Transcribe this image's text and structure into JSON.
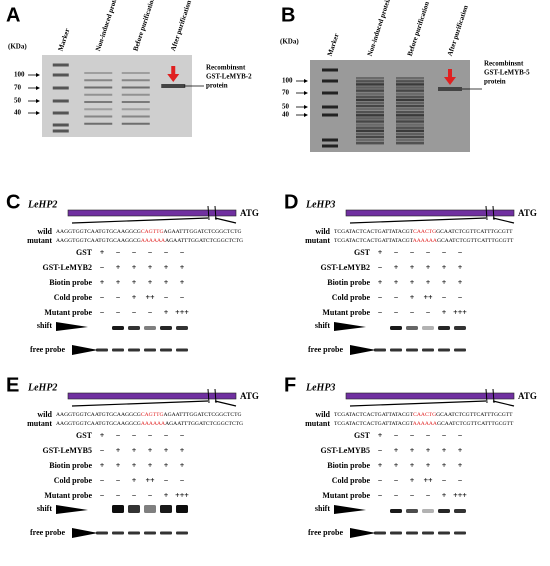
{
  "gels": [
    {
      "letter": "A",
      "unit": "(KDa)",
      "lanes": [
        "Marker",
        "Non-induced protein",
        "Before purification",
        "After purification"
      ],
      "markers": [
        100,
        70,
        50,
        40
      ],
      "label": [
        "Recombinsnt",
        "GST-LeMYB-2",
        "protein"
      ]
    },
    {
      "letter": "B",
      "unit": "(KDa)",
      "lanes": [
        "Marker",
        "Non-induced protein",
        "Before purification",
        "After purification"
      ],
      "markers": [
        100,
        70,
        50,
        40
      ],
      "label": [
        "Recombinsnt",
        "GST-LeMYB-5",
        "protein"
      ]
    }
  ],
  "emsa": [
    {
      "letter": "C",
      "gene": "LeHP2",
      "start": "ATG",
      "wild": {
        "name": "wild",
        "pre": "AAGGTGGTCAATGTGCAAGGCG",
        "site": "CAGTTG",
        "post": "AGAATTTGGATCTCGGCTCTG"
      },
      "mutant": {
        "name": "mutant",
        "pre": "AAGGTGGTCAATGTGCAAGGCG",
        "site": "AAAAAA",
        "post": "AGAATTTGGATCTCGGCTCTG"
      },
      "rows": [
        {
          "name": "GST",
          "signs": [
            "+",
            "−",
            "−",
            "−",
            "−",
            "−"
          ]
        },
        {
          "name": "GST-LeMYB2",
          "signs": [
            "−",
            "+",
            "+",
            "+",
            "+",
            "+"
          ]
        },
        {
          "name": "Biotin probe",
          "signs": [
            "+",
            "+",
            "+",
            "+",
            "+",
            "+"
          ]
        },
        {
          "name": "Cold probe",
          "signs": [
            "−",
            "−",
            "+",
            "++",
            "−",
            "−"
          ]
        },
        {
          "name": "Mutant probe",
          "signs": [
            "−",
            "−",
            "−",
            "−",
            "+",
            "+++"
          ]
        }
      ],
      "shift": "shift",
      "free": "free probe"
    },
    {
      "letter": "D",
      "gene": "LeHP3",
      "start": "ATG",
      "wild": {
        "name": "wild",
        "pre": "TCGATACTCACTGATTATACGT",
        "site": "CAACTG",
        "post": "GCAATCTCGTTCATTTGCGTT"
      },
      "mutant": {
        "name": "mutant",
        "pre": "TCGATACTCACTGATTATACGT",
        "site": "AAAAAA",
        "post": "GCAATCTCGTTCATTTGCGTT"
      },
      "rows": [
        {
          "name": "GST",
          "signs": [
            "+",
            "−",
            "−",
            "−",
            "−",
            "−"
          ]
        },
        {
          "name": "GST-LeMYB2",
          "signs": [
            "−",
            "+",
            "+",
            "+",
            "+",
            "+"
          ]
        },
        {
          "name": "Biotin probe",
          "signs": [
            "+",
            "+",
            "+",
            "+",
            "+",
            "+"
          ]
        },
        {
          "name": "Cold probe",
          "signs": [
            "−",
            "−",
            "+",
            "++",
            "−",
            "−"
          ]
        },
        {
          "name": "Mutant probe",
          "signs": [
            "−",
            "−",
            "−",
            "−",
            "+",
            "+++"
          ]
        }
      ],
      "shift": "shift",
      "free": "free probe"
    },
    {
      "letter": "E",
      "gene": "LeHP2",
      "start": "ATG",
      "wild": {
        "name": "wild",
        "pre": "AAGGTGGTCAATGTGCAAGGCG",
        "site": "CAGTTG",
        "post": "AGAATTTGGATCTCGGCTCTG"
      },
      "mutant": {
        "name": "mutant",
        "pre": "AAGGTGGTCAATGTGCAAGGCG",
        "site": "AAAAAA",
        "post": "AGAATTTGGATCTCGGCTCTG"
      },
      "rows": [
        {
          "name": "GST",
          "signs": [
            "+",
            "−",
            "−",
            "−",
            "−",
            "−"
          ]
        },
        {
          "name": "GST-LeMYB5",
          "signs": [
            "−",
            "+",
            "+",
            "+",
            "+",
            "+"
          ]
        },
        {
          "name": "Biotin probe",
          "signs": [
            "+",
            "+",
            "+",
            "+",
            "+",
            "+"
          ]
        },
        {
          "name": "Cold probe",
          "signs": [
            "−",
            "−",
            "+",
            "++",
            "−",
            "−"
          ]
        },
        {
          "name": "Mutant probe",
          "signs": [
            "−",
            "−",
            "−",
            "−",
            "+",
            "+++"
          ]
        }
      ],
      "shift": "shift",
      "free": "free probe"
    },
    {
      "letter": "F",
      "gene": "LeHP3",
      "start": "ATG",
      "wild": {
        "name": "wild",
        "pre": "TCGATACTCACTGATTATACGT",
        "site": "CAACTG",
        "post": "GCAATCTCGTTCATTTGCGTT"
      },
      "mutant": {
        "name": "mutant",
        "pre": "TCGATACTCACTGATTATACGT",
        "site": "AAAAAA",
        "post": "GCAATCTCGTTCATTTGCGTT"
      },
      "rows": [
        {
          "name": "GST",
          "signs": [
            "+",
            "−",
            "−",
            "−",
            "−",
            "−"
          ]
        },
        {
          "name": "GST-LeMYB5",
          "signs": [
            "−",
            "+",
            "+",
            "+",
            "+",
            "+"
          ]
        },
        {
          "name": "Biotin probe",
          "signs": [
            "+",
            "+",
            "+",
            "+",
            "+",
            "+"
          ]
        },
        {
          "name": "Cold probe",
          "signs": [
            "−",
            "−",
            "+",
            "++",
            "−",
            "−"
          ]
        },
        {
          "name": "Mutant probe",
          "signs": [
            "−",
            "−",
            "−",
            "−",
            "+",
            "+++"
          ]
        }
      ],
      "shift": "shift",
      "free": "free probe"
    }
  ]
}
